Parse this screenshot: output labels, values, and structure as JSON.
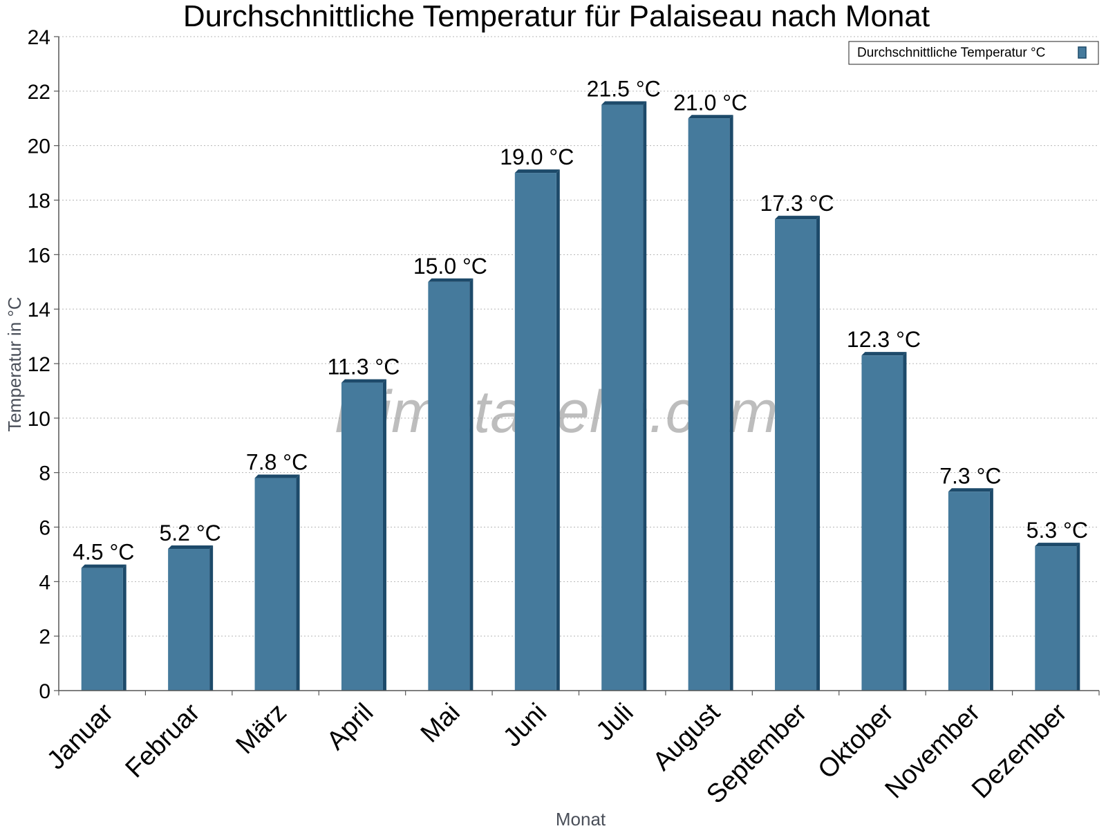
{
  "chart_data": {
    "type": "bar",
    "title": "Durchschnittliche Temperatur für Palaiseau nach Monat",
    "xlabel": "Monat",
    "ylabel": "Temperatur in °C",
    "ylim": [
      0,
      24
    ],
    "yticks": [
      0,
      2,
      4,
      6,
      8,
      10,
      12,
      14,
      16,
      18,
      20,
      22,
      24
    ],
    "grid": true,
    "legend_position": "top-right",
    "categories": [
      "Januar",
      "Februar",
      "März",
      "April",
      "Mai",
      "Juni",
      "Juli",
      "August",
      "September",
      "Oktober",
      "November",
      "Dezember"
    ],
    "series": [
      {
        "name": "Durchschnittliche Temperatur °C",
        "values": [
          4.5,
          5.2,
          7.8,
          11.3,
          15.0,
          19.0,
          21.5,
          21.0,
          17.3,
          12.3,
          7.3,
          5.3
        ],
        "labels": [
          "4.5 °C",
          "5.2 °C",
          "7.8 °C",
          "11.3 °C",
          "15.0 °C",
          "19.0 °C",
          "21.5 °C",
          "21.0 °C",
          "17.3 °C",
          "12.3 °C",
          "7.3 °C",
          "5.3 °C"
        ],
        "color": "#457a9c",
        "edge_color": "#1d4a6a"
      }
    ],
    "watermark": "klimatabelle.com"
  }
}
